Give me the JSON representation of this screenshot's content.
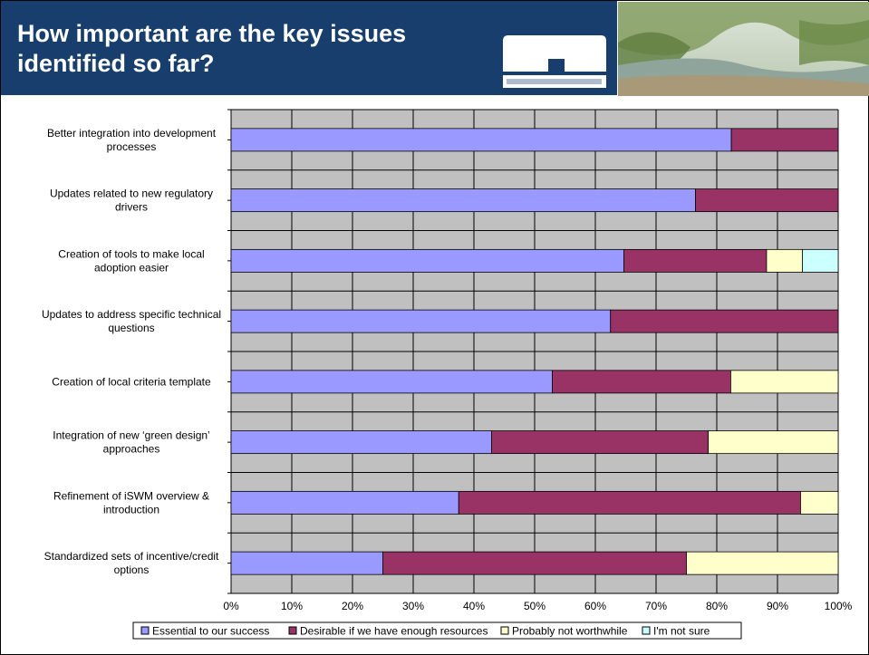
{
  "slide": {
    "title": "How important are the key issues identified so far?"
  },
  "colors": {
    "header_bg": "#173e6c",
    "plot_bg": "#c0c0c0",
    "grid": "#000000"
  },
  "chart_data": {
    "type": "bar",
    "orientation": "horizontal",
    "stacked": true,
    "categories": [
      [
        "Better integration into development",
        "processes"
      ],
      [
        "Updates related to new regulatory",
        "drivers"
      ],
      [
        "Creation of tools to make local",
        "adoption easier"
      ],
      [
        "Updates to address specific technical",
        "questions"
      ],
      [
        "Creation of local criteria template"
      ],
      [
        "Integration of new ‘green design’",
        "approaches"
      ],
      [
        "Refinement of iSWM overview &",
        "introduction"
      ],
      [
        "Standardized sets of incentive/credit",
        "options"
      ]
    ],
    "series": [
      {
        "name": "Essential to our success",
        "color": "#9999ff",
        "values": [
          82.4,
          76.5,
          64.7,
          62.5,
          52.9,
          42.9,
          37.5,
          25.0
        ]
      },
      {
        "name": "Desirable if we have enough resources",
        "color": "#993366",
        "values": [
          17.6,
          23.5,
          23.5,
          37.5,
          29.4,
          35.7,
          56.3,
          50.0
        ]
      },
      {
        "name": "Probably not worthwhile",
        "color": "#ffffcc",
        "values": [
          0,
          0,
          5.9,
          0,
          17.7,
          21.4,
          6.2,
          25.0
        ]
      },
      {
        "name": "I'm not sure",
        "color": "#ccffff",
        "values": [
          0,
          0,
          5.9,
          0,
          0,
          0,
          0,
          0
        ]
      }
    ],
    "xticks": [
      "0%",
      "10%",
      "20%",
      "30%",
      "40%",
      "50%",
      "60%",
      "70%",
      "80%",
      "90%",
      "100%"
    ],
    "xlim": [
      0,
      100
    ],
    "grid": true,
    "legend_position": "bottom"
  }
}
